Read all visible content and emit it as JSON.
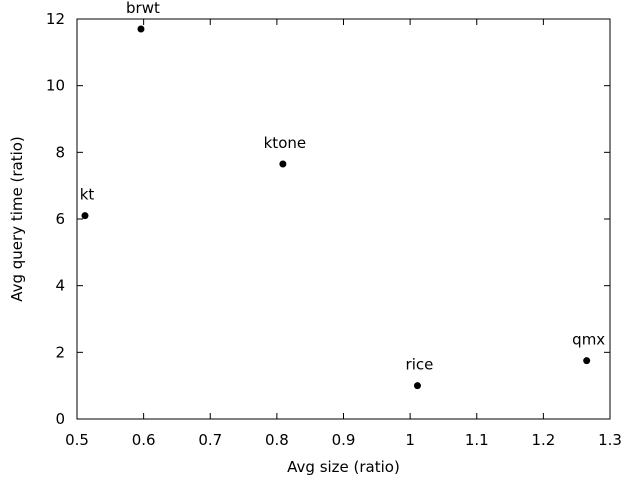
{
  "chart_data": {
    "type": "scatter",
    "title": "",
    "xlabel": "Avg size (ratio)",
    "ylabel": "Avg query time (ratio)",
    "xlim": [
      0.5,
      1.3
    ],
    "ylim": [
      0,
      12
    ],
    "grid": false,
    "legend": "none",
    "x_ticks": [
      0.5,
      0.6,
      0.7,
      0.8,
      0.9,
      1.0,
      1.1,
      1.2,
      1.3
    ],
    "x_tick_labels": [
      "0.5",
      "0.6",
      "0.7",
      "0.8",
      "0.9",
      "1",
      "1.1",
      "1.2",
      "1.3"
    ],
    "y_ticks": [
      0,
      2,
      4,
      6,
      8,
      10,
      12
    ],
    "y_tick_labels": [
      "0",
      "2",
      "4",
      "6",
      "8",
      "10",
      "12"
    ],
    "points": [
      {
        "label": "brwt",
        "x": 0.596,
        "y": 11.7
      },
      {
        "label": "ktone",
        "x": 0.809,
        "y": 7.65
      },
      {
        "label": "kt",
        "x": 0.512,
        "y": 6.1
      },
      {
        "label": "rice",
        "x": 1.011,
        "y": 1.0
      },
      {
        "label": "qmx",
        "x": 1.265,
        "y": 1.75
      }
    ],
    "marker_color": "#000000",
    "axis_color": "#000000"
  }
}
